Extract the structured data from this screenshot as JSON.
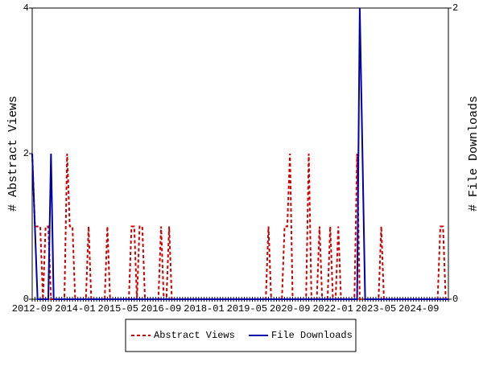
{
  "chart_data": {
    "type": "line",
    "y_label": "# Abstract Views",
    "y2_label": "# File Downloads",
    "categories": [
      "2012-09",
      null,
      null,
      null,
      null,
      null,
      null,
      null,
      null,
      null,
      null,
      null,
      null,
      null,
      null,
      null,
      "2014-01",
      null,
      null,
      null,
      null,
      null,
      null,
      null,
      null,
      null,
      null,
      null,
      null,
      null,
      null,
      null,
      "2015-05",
      null,
      null,
      null,
      null,
      null,
      null,
      null,
      null,
      null,
      null,
      null,
      null,
      null,
      null,
      null,
      "2016-09",
      null,
      null,
      null,
      null,
      null,
      null,
      null,
      null,
      null,
      null,
      null,
      null,
      null,
      null,
      null,
      "2018-01",
      null,
      null,
      null,
      null,
      null,
      null,
      null,
      null,
      null,
      null,
      null,
      null,
      null,
      null,
      null,
      "2019-05",
      null,
      null,
      null,
      null,
      null,
      null,
      null,
      null,
      null,
      null,
      null,
      null,
      null,
      null,
      null,
      "2020-09",
      null,
      null,
      null,
      null,
      null,
      null,
      null,
      null,
      null,
      null,
      null,
      null,
      null,
      null,
      null,
      "2022-01",
      null,
      null,
      null,
      null,
      null,
      null,
      null,
      null,
      null,
      null,
      null,
      null,
      null,
      null,
      null,
      "2023-05",
      null,
      null,
      null,
      null,
      null,
      null,
      null,
      null,
      null,
      null,
      null,
      null,
      null,
      null,
      null,
      "2024-09",
      null,
      null,
      null,
      null,
      null,
      null,
      null,
      null,
      null,
      null,
      null
    ],
    "series": [
      {
        "name": "Abstract Views",
        "color": "#cc0000",
        "dashed": true,
        "axis": "y",
        "values": [
          2,
          1,
          1,
          1,
          0,
          1,
          1,
          0,
          0,
          0,
          0,
          0,
          0,
          2,
          1,
          1,
          0,
          0,
          0,
          0,
          0,
          1,
          0,
          0,
          0,
          0,
          0,
          0,
          1,
          0,
          0,
          0,
          0,
          0,
          0,
          0,
          0,
          1,
          1,
          0,
          1,
          1,
          0,
          0,
          0,
          0,
          0,
          0,
          1,
          0,
          0,
          1,
          0,
          0,
          0,
          0,
          0,
          0,
          0,
          0,
          0,
          0,
          0,
          0,
          0,
          0,
          0,
          0,
          0,
          0,
          0,
          0,
          0,
          0,
          0,
          0,
          0,
          0,
          0,
          0,
          0,
          0,
          0,
          0,
          0,
          0,
          0,
          0,
          1,
          0,
          0,
          0,
          0,
          0,
          1,
          1,
          2,
          0,
          0,
          0,
          0,
          0,
          0,
          2,
          0,
          0,
          0,
          1,
          0,
          0,
          0,
          1,
          0,
          0,
          1,
          0,
          0,
          0,
          0,
          0,
          0,
          2,
          0,
          0,
          0,
          0,
          0,
          0,
          0,
          0,
          1,
          0,
          0,
          0,
          0,
          0,
          0,
          0,
          0,
          0,
          0,
          0,
          0,
          0,
          0,
          0,
          0,
          0,
          0,
          0,
          0,
          0,
          1,
          1,
          0,
          0
        ]
      },
      {
        "name": "File Downloads",
        "color": "#0000aa",
        "dashed": false,
        "axis": "y2",
        "values": [
          1,
          0.5,
          0,
          0,
          0,
          0,
          0,
          1,
          0,
          0,
          0,
          0,
          0,
          0,
          0,
          0,
          0,
          0,
          0,
          0,
          0,
          0,
          0,
          0,
          0,
          0,
          0,
          0,
          0,
          0,
          0,
          0,
          0,
          0,
          0,
          0,
          0,
          0,
          0,
          0,
          0,
          0,
          0,
          0,
          0,
          0,
          0,
          0,
          0,
          0,
          0,
          0,
          0,
          0,
          0,
          0,
          0,
          0,
          0,
          0,
          0,
          0,
          0,
          0,
          0,
          0,
          0,
          0,
          0,
          0,
          0,
          0,
          0,
          0,
          0,
          0,
          0,
          0,
          0,
          0,
          0,
          0,
          0,
          0,
          0,
          0,
          0,
          0,
          0,
          0,
          0,
          0,
          0,
          0,
          0,
          0,
          0,
          0,
          0,
          0,
          0,
          0,
          0,
          0,
          0,
          0,
          0,
          0,
          0,
          0,
          0,
          0,
          0,
          0,
          0,
          0,
          0,
          0,
          0,
          0,
          0,
          0,
          2,
          1,
          0,
          0,
          0,
          0,
          0,
          0,
          0,
          0,
          0,
          0,
          0,
          0,
          0,
          0,
          0,
          0,
          0,
          0,
          0,
          0,
          0,
          0,
          0,
          0,
          0,
          0,
          0,
          0,
          0,
          0,
          0,
          0
        ]
      }
    ],
    "ylim": [
      0,
      4
    ],
    "yticks": [
      0,
      2,
      4
    ],
    "y2lim": [
      0,
      2
    ],
    "y2ticks": [
      0,
      2
    ],
    "legend": "bottom"
  }
}
